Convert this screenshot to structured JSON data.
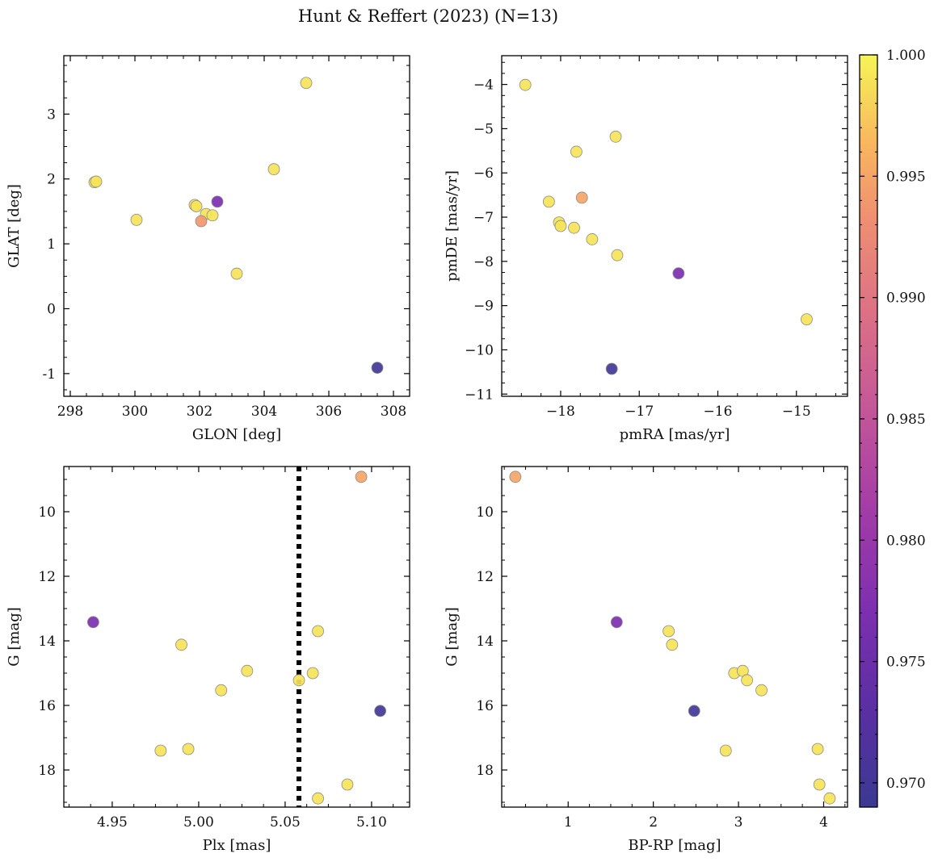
{
  "figure": {
    "title": "Hunt & Reffert (2023) (N=13)"
  },
  "colorbar": {
    "colormap": "plasma",
    "range": [
      0.969,
      1.0
    ],
    "ticks": [
      0.97,
      0.975,
      0.98,
      0.985,
      0.99,
      0.995,
      1.0
    ],
    "tick_labels": [
      "0.970",
      "0.975",
      "0.980",
      "0.985",
      "0.990",
      "0.995",
      "1.000"
    ]
  },
  "chart_data": [
    {
      "type": "scatter",
      "xlabel": "GLON [deg]",
      "ylabel": "GLAT [deg]",
      "xlim": [
        297.8,
        308.5
      ],
      "ylim": [
        -1.35,
        3.9
      ],
      "xticks": [
        298,
        300,
        302,
        304,
        306,
        308
      ],
      "yticks": [
        -1,
        0,
        1,
        2,
        3
      ],
      "points": [
        {
          "x": 298.75,
          "y": 1.95,
          "c": 0.999
        },
        {
          "x": 298.8,
          "y": 1.96,
          "c": 0.999
        },
        {
          "x": 300.05,
          "y": 1.37,
          "c": 0.999
        },
        {
          "x": 301.85,
          "y": 1.6,
          "c": 0.999
        },
        {
          "x": 301.9,
          "y": 1.58,
          "c": 0.999
        },
        {
          "x": 302.05,
          "y": 1.35,
          "c": 0.994
        },
        {
          "x": 302.2,
          "y": 1.46,
          "c": 0.999
        },
        {
          "x": 302.4,
          "y": 1.44,
          "c": 0.999
        },
        {
          "x": 302.55,
          "y": 1.65,
          "c": 0.977
        },
        {
          "x": 303.15,
          "y": 0.54,
          "c": 0.999
        },
        {
          "x": 304.3,
          "y": 2.15,
          "c": 0.999
        },
        {
          "x": 305.3,
          "y": 3.48,
          "c": 0.999
        },
        {
          "x": 307.5,
          "y": -0.91,
          "c": 0.97
        }
      ]
    },
    {
      "type": "scatter",
      "xlabel": "pmRA [mas/yr]",
      "ylabel": "pmDE [mas/yr]",
      "xlim": [
        -18.75,
        -14.35
      ],
      "ylim": [
        -11.05,
        -3.35
      ],
      "xticks": [
        -18,
        -17,
        -16,
        -15
      ],
      "xtick_labels": [
        "−18",
        "−17",
        "−16",
        "−15"
      ],
      "yticks": [
        -11,
        -10,
        -9,
        -8,
        -7,
        -6,
        -5,
        -4
      ],
      "ytick_labels": [
        "−11",
        "−10",
        "−9",
        "−8",
        "−7",
        "−6",
        "−5",
        "−4"
      ],
      "points": [
        {
          "x": -18.45,
          "y": -4.01,
          "c": 0.999
        },
        {
          "x": -18.15,
          "y": -6.65,
          "c": 0.999
        },
        {
          "x": -18.02,
          "y": -7.12,
          "c": 0.999
        },
        {
          "x": -18.0,
          "y": -7.2,
          "c": 0.999
        },
        {
          "x": -17.83,
          "y": -7.24,
          "c": 0.999
        },
        {
          "x": -17.8,
          "y": -5.52,
          "c": 0.999
        },
        {
          "x": -17.73,
          "y": -6.56,
          "c": 0.995
        },
        {
          "x": -17.6,
          "y": -7.5,
          "c": 0.999
        },
        {
          "x": -17.3,
          "y": -5.18,
          "c": 0.999
        },
        {
          "x": -17.28,
          "y": -7.86,
          "c": 0.999
        },
        {
          "x": -17.35,
          "y": -10.43,
          "c": 0.97
        },
        {
          "x": -16.5,
          "y": -8.27,
          "c": 0.977
        },
        {
          "x": -14.87,
          "y": -9.31,
          "c": 0.999
        }
      ]
    },
    {
      "type": "scatter",
      "xlabel": "Plx [mas]",
      "ylabel": "G [mag]",
      "xlim": [
        4.922,
        5.122
      ],
      "ylim": [
        19.15,
        8.6
      ],
      "y_inverted": true,
      "xticks": [
        4.95,
        5.0,
        5.05,
        5.1
      ],
      "xtick_labels": [
        "4.95",
        "5.00",
        "5.05",
        "5.10"
      ],
      "yticks": [
        10,
        12,
        14,
        16,
        18
      ],
      "vline": {
        "x": 5.058,
        "style": "dotted",
        "color": "#000000"
      },
      "points": [
        {
          "x": 4.939,
          "y": 13.42,
          "c": 0.977
        },
        {
          "x": 4.978,
          "y": 17.4,
          "c": 0.999
        },
        {
          "x": 4.99,
          "y": 14.12,
          "c": 0.999
        },
        {
          "x": 4.994,
          "y": 17.35,
          "c": 0.999
        },
        {
          "x": 5.013,
          "y": 15.53,
          "c": 0.999
        },
        {
          "x": 5.028,
          "y": 14.93,
          "c": 0.999
        },
        {
          "x": 5.058,
          "y": 15.22,
          "c": 0.999
        },
        {
          "x": 5.066,
          "y": 15.0,
          "c": 0.999
        },
        {
          "x": 5.069,
          "y": 13.7,
          "c": 0.999
        },
        {
          "x": 5.069,
          "y": 18.88,
          "c": 0.999
        },
        {
          "x": 5.086,
          "y": 18.45,
          "c": 0.999
        },
        {
          "x": 5.094,
          "y": 8.92,
          "c": 0.995
        },
        {
          "x": 5.105,
          "y": 16.17,
          "c": 0.97
        }
      ]
    },
    {
      "type": "scatter",
      "xlabel": "BP-RP [mag]",
      "ylabel": "G [mag]",
      "xlim": [
        0.22,
        4.28
      ],
      "ylim": [
        19.15,
        8.6
      ],
      "y_inverted": true,
      "xticks": [
        1,
        2,
        3,
        4
      ],
      "yticks": [
        10,
        12,
        14,
        16,
        18
      ],
      "points": [
        {
          "x": 0.38,
          "y": 8.92,
          "c": 0.995
        },
        {
          "x": 1.57,
          "y": 13.42,
          "c": 0.977
        },
        {
          "x": 2.18,
          "y": 13.7,
          "c": 0.999
        },
        {
          "x": 2.22,
          "y": 14.12,
          "c": 0.999
        },
        {
          "x": 2.48,
          "y": 16.17,
          "c": 0.97
        },
        {
          "x": 2.85,
          "y": 17.4,
          "c": 0.999
        },
        {
          "x": 2.95,
          "y": 15.0,
          "c": 0.999
        },
        {
          "x": 3.05,
          "y": 14.93,
          "c": 0.999
        },
        {
          "x": 3.1,
          "y": 15.22,
          "c": 0.999
        },
        {
          "x": 3.27,
          "y": 15.53,
          "c": 0.999
        },
        {
          "x": 3.93,
          "y": 17.35,
          "c": 0.999
        },
        {
          "x": 3.95,
          "y": 18.45,
          "c": 0.999
        },
        {
          "x": 4.07,
          "y": 18.88,
          "c": 0.999
        }
      ]
    }
  ]
}
